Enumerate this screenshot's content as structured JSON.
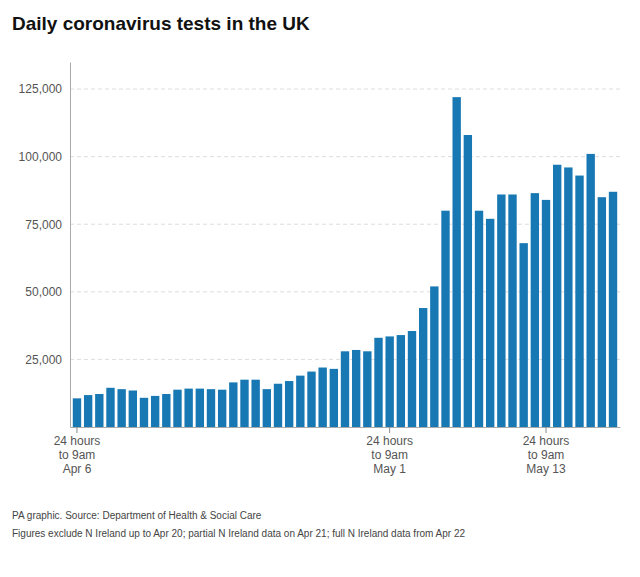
{
  "chart_data": {
    "type": "bar",
    "title": "Daily coronavirus tests in the UK",
    "categories": [
      "24 hours\nto 9am\nApr 6",
      null,
      null,
      null,
      null,
      null,
      null,
      null,
      null,
      null,
      null,
      null,
      null,
      null,
      null,
      null,
      null,
      null,
      null,
      null,
      null,
      null,
      null,
      null,
      null,
      null,
      null,
      null,
      "24 hours\nto 9am\nMay 1",
      null,
      null,
      null,
      null,
      null,
      null,
      null,
      null,
      null,
      null,
      null,
      null,
      null,
      "24 hours\nto 9am\nMay 13",
      null,
      null,
      null,
      null,
      null,
      null
    ],
    "values": [
      10600,
      11800,
      12200,
      14500,
      14000,
      13500,
      10800,
      11500,
      12200,
      13800,
      14200,
      14200,
      14000,
      13800,
      16500,
      17500,
      17500,
      14000,
      16000,
      17000,
      19000,
      20500,
      22000,
      21500,
      28000,
      28500,
      28000,
      33000,
      33500,
      34000,
      35500,
      44000,
      52000,
      80000,
      122000,
      108000,
      80000,
      77000,
      86000,
      86000,
      68000,
      86500,
      84000,
      97000,
      96000,
      93000,
      101000,
      85000,
      87000
    ],
    "color": "#1878b4",
    "ylim": [
      0,
      135000
    ],
    "yticks": [
      {
        "value": 25000,
        "label": "25,000"
      },
      {
        "value": 50000,
        "label": "50,000"
      },
      {
        "value": 75000,
        "label": "75,000"
      },
      {
        "value": 100000,
        "label": "100,000"
      },
      {
        "value": 125000,
        "label": "125,000"
      }
    ],
    "grid": true,
    "annotations": [
      "PA graphic. Source: Department of Health & Social Care",
      "Figures exclude N Ireland up to Apr 20; partial N Ireland data on Apr 21; full N Ireland data from Apr 22"
    ]
  }
}
